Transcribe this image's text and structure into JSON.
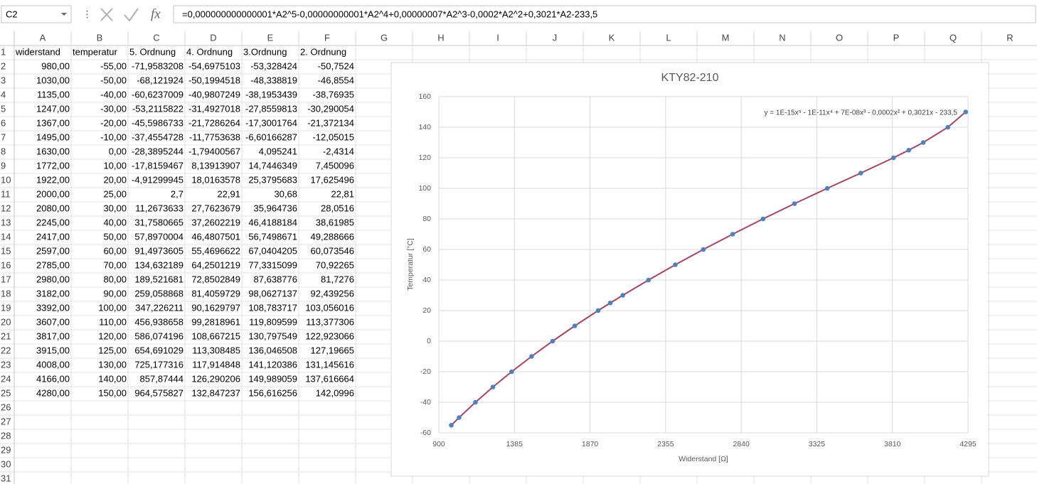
{
  "formula_bar": {
    "name_box": "C2",
    "function_label": "fx",
    "formula": "=0,000000000000001*A2^5-0,00000000001*A2^4+0,00000007*A2^3-0,0002*A2^2+0,3021*A2-233,5"
  },
  "sheet": {
    "columns": [
      "A",
      "B",
      "C",
      "D",
      "E",
      "F",
      "G",
      "H",
      "I",
      "J",
      "K",
      "L",
      "M",
      "N",
      "O",
      "P",
      "Q",
      "R"
    ],
    "row_numbers": [
      "1",
      "2",
      "3",
      "4",
      "5",
      "6",
      "7",
      "8",
      "9",
      "10",
      "11",
      "12",
      "13",
      "14",
      "15",
      "16",
      "17",
      "18",
      "19",
      "20",
      "21",
      "22",
      "23",
      "24",
      "25",
      "26",
      "27",
      "28",
      "29",
      "30",
      "31"
    ],
    "rows": [
      [
        "widerstand",
        "temperatur",
        "5. Ordnung",
        "4. Ordnung",
        "3.Ordnung",
        "2. Ordnung"
      ],
      [
        "980,00",
        "-55,00",
        "-71,9583208",
        "-54,6975103",
        "-53,328424",
        "-50,7524"
      ],
      [
        "1030,00",
        "-50,00",
        "-68,121924",
        "-50,1994518",
        "-48,338819",
        "-46,8554"
      ],
      [
        "1135,00",
        "-40,00",
        "-60,6237009",
        "-40,9807249",
        "-38,1953439",
        "-38,76935"
      ],
      [
        "1247,00",
        "-30,00",
        "-53,2115822",
        "-31,4927018",
        "-27,8559813",
        "-30,290054"
      ],
      [
        "1367,00",
        "-20,00",
        "-45,5986733",
        "-21,7286264",
        "-17,3001764",
        "-21,372134"
      ],
      [
        "1495,00",
        "-10,00",
        "-37,4554728",
        "-11,7753638",
        "-6,60166287",
        "-12,05015"
      ],
      [
        "1630,00",
        "0,00",
        "-28,3895244",
        "-1,79400567",
        "4,095241",
        "-2,4314"
      ],
      [
        "1772,00",
        "10,00",
        "-17,8159467",
        "8,13913907",
        "14,7446349",
        "7,450096"
      ],
      [
        "1922,00",
        "20,00",
        "-4,91299945",
        "18,0163578",
        "25,3795683",
        "17,625496"
      ],
      [
        "2000,00",
        "25,00",
        "2,7",
        "22,91",
        "30,68",
        "22,81"
      ],
      [
        "2080,00",
        "30,00",
        "11,2673633",
        "27,7623679",
        "35,964736",
        "28,0516"
      ],
      [
        "2245,00",
        "40,00",
        "31,7580665",
        "37,2602219",
        "46,4188184",
        "38,61985"
      ],
      [
        "2417,00",
        "50,00",
        "57,8970004",
        "46,4807501",
        "56,7498671",
        "49,288666"
      ],
      [
        "2597,00",
        "60,00",
        "91,4973605",
        "55,4696622",
        "67,0404205",
        "60,073546"
      ],
      [
        "2785,00",
        "70,00",
        "134,632189",
        "64,2501219",
        "77,3315099",
        "70,92265"
      ],
      [
        "2980,00",
        "80,00",
        "189,521681",
        "72,8502849",
        "87,638776",
        "81,7276"
      ],
      [
        "3182,00",
        "90,00",
        "259,058868",
        "81,4059729",
        "98,0627137",
        "92,439256"
      ],
      [
        "3392,00",
        "100,00",
        "347,226211",
        "90,1629797",
        "108,783717",
        "103,056016"
      ],
      [
        "3607,00",
        "110,00",
        "456,938658",
        "99,2818961",
        "119,809599",
        "113,377306"
      ],
      [
        "3817,00",
        "120,00",
        "586,074196",
        "108,667215",
        "130,797549",
        "122,923066"
      ],
      [
        "3915,00",
        "125,00",
        "654,691029",
        "113,308485",
        "136,046508",
        "127,19665"
      ],
      [
        "4008,00",
        "130,00",
        "725,177316",
        "117,914848",
        "141,120386",
        "131,145616"
      ],
      [
        "4166,00",
        "140,00",
        "857,87444",
        "126,290206",
        "149,989059",
        "137,616664"
      ],
      [
        "4280,00",
        "150,00",
        "964,575827",
        "132,847237",
        "156,616256",
        "142,0996"
      ]
    ]
  },
  "chart_data": {
    "type": "scatter",
    "title": "KTY82-210",
    "trendline_label": "y = 1E-15x⁵ - 1E-11x⁴ + 7E-08x³ - 0,0002x² + 0,3021x - 233,5",
    "x_label": "Widerstand [Ω]",
    "y_label": "Temperatur [°C]",
    "x": [
      980,
      1030,
      1135,
      1247,
      1367,
      1495,
      1630,
      1772,
      1922,
      2000,
      2080,
      2245,
      2417,
      2597,
      2785,
      2980,
      3182,
      3392,
      3607,
      3817,
      3915,
      4008,
      4166,
      4280
    ],
    "series": [
      {
        "color": "#4f81bd",
        "line_color": "#9b3f6b",
        "values": [
          -55,
          -50,
          -40,
          -30,
          -20,
          -10,
          0,
          10,
          20,
          25,
          30,
          40,
          50,
          60,
          70,
          80,
          90,
          100,
          110,
          120,
          125,
          130,
          140,
          150
        ]
      }
    ],
    "xlim": [
      900,
      4295
    ],
    "xticks": [
      900,
      1385,
      1870,
      2355,
      2840,
      3325,
      3810,
      4295
    ],
    "ylim": [
      -60,
      160
    ],
    "yticks": [
      -60,
      -40,
      -20,
      0,
      20,
      40,
      60,
      80,
      100,
      120,
      140,
      160
    ],
    "grid": true
  }
}
